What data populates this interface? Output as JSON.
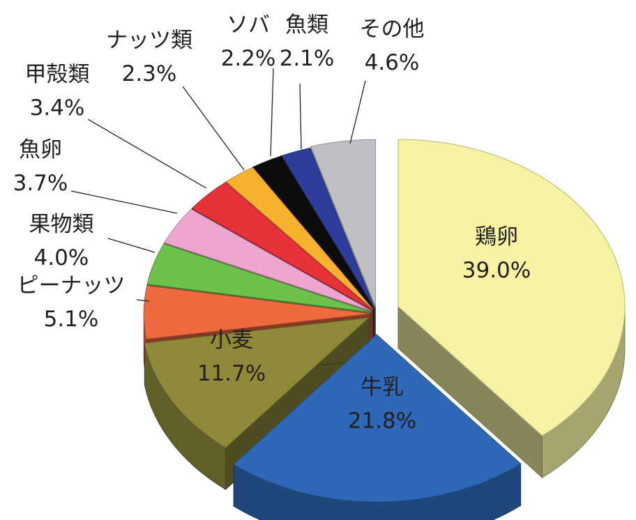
{
  "chart_data": {
    "type": "pie",
    "style": "3d-exploded",
    "title": "",
    "legend": "none",
    "slices": [
      {
        "name": "鶏卵",
        "value": 39.0,
        "label": "39.0%",
        "color": "#f5f3a3",
        "label_pos": "inside"
      },
      {
        "name": "牛乳",
        "value": 21.8,
        "label": "21.8%",
        "color": "#2f68b7",
        "label_pos": "inside"
      },
      {
        "name": "小麦",
        "value": 11.7,
        "label": "11.7%",
        "color": "#8e8a3a",
        "label_pos": "inside"
      },
      {
        "name": "ピーナッツ",
        "value": 5.1,
        "label": "5.1%",
        "color": "#ef6a3f",
        "label_pos": "outside"
      },
      {
        "name": "果物類",
        "value": 4.0,
        "label": "4.0%",
        "color": "#6cc24a",
        "label_pos": "outside"
      },
      {
        "name": "魚卵",
        "value": 3.7,
        "label": "3.7%",
        "color": "#eea6cf",
        "label_pos": "outside"
      },
      {
        "name": "甲殻類",
        "value": 3.4,
        "label": "3.4%",
        "color": "#e8323a",
        "label_pos": "outside"
      },
      {
        "name": "ナッツ類",
        "value": 2.3,
        "label": "2.3%",
        "color": "#f7b12e",
        "label_pos": "outside"
      },
      {
        "name": "ソバ",
        "value": 2.2,
        "label": "2.2%",
        "color": "#0c0c0c",
        "label_pos": "outside"
      },
      {
        "name": "魚類",
        "value": 2.1,
        "label": "2.1%",
        "color": "#2e3d9c",
        "label_pos": "outside"
      },
      {
        "name": "その他",
        "value": 4.6,
        "label": "4.6%",
        "color": "#bfc0c4",
        "label_pos": "outside"
      }
    ]
  }
}
